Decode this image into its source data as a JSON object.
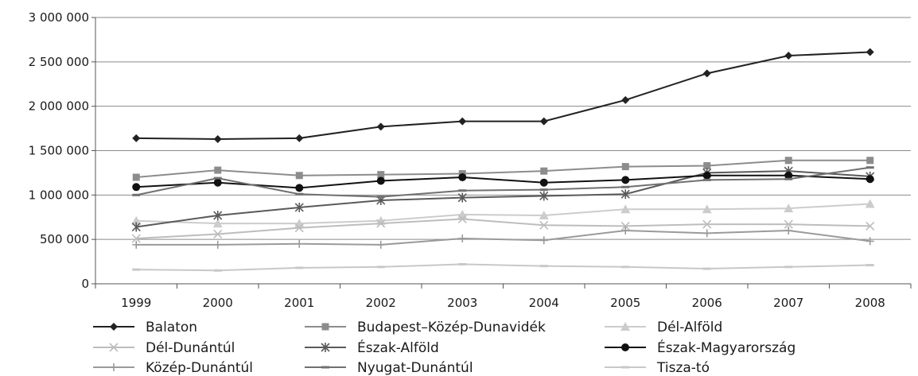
{
  "chart_data": {
    "type": "line",
    "categories": [
      "1999",
      "2000",
      "2001",
      "2002",
      "2003",
      "2004",
      "2005",
      "2006",
      "2007",
      "2008"
    ],
    "ylim": [
      0,
      3000000
    ],
    "yticks": [
      0,
      500000,
      1000000,
      1500000,
      2000000,
      2500000,
      3000000
    ],
    "ytick_labels": [
      "0",
      "500 000",
      "1 000 000",
      "1 500 000",
      "2 000 000",
      "2 500 000",
      "3 000 000"
    ],
    "grid": "horizontal",
    "legend_position": "bottom",
    "series": [
      {
        "name": "Balaton",
        "marker": "diamond",
        "color": "#222222",
        "values": [
          1640000,
          1630000,
          1640000,
          1770000,
          1830000,
          1830000,
          2070000,
          2370000,
          2570000,
          2610000
        ]
      },
      {
        "name": "Budapest–Közép-Dunavidék",
        "marker": "square",
        "color": "#8c8c8c",
        "values": [
          1200000,
          1280000,
          1220000,
          1230000,
          1240000,
          1270000,
          1320000,
          1330000,
          1390000,
          1390000
        ]
      },
      {
        "name": "Dél-Alföld",
        "marker": "triangle",
        "color": "#cccccc",
        "values": [
          710000,
          680000,
          680000,
          710000,
          780000,
          770000,
          840000,
          840000,
          850000,
          900000
        ]
      },
      {
        "name": "Dél-Dunántúl",
        "marker": "x",
        "color": "#bdbdbd",
        "values": [
          510000,
          560000,
          630000,
          680000,
          730000,
          660000,
          650000,
          670000,
          670000,
          650000
        ]
      },
      {
        "name": "Észak-Alföld",
        "marker": "star",
        "color": "#5a5a5a",
        "values": [
          640000,
          770000,
          860000,
          940000,
          970000,
          990000,
          1010000,
          1250000,
          1270000,
          1210000
        ]
      },
      {
        "name": "Észak-Magyarország",
        "marker": "circle",
        "color": "#111111",
        "values": [
          1090000,
          1140000,
          1080000,
          1160000,
          1200000,
          1140000,
          1170000,
          1220000,
          1220000,
          1180000
        ]
      },
      {
        "name": "Közép-Dunántúl",
        "marker": "plus",
        "color": "#9a9a9a",
        "values": [
          440000,
          440000,
          450000,
          440000,
          510000,
          490000,
          600000,
          570000,
          600000,
          480000
        ]
      },
      {
        "name": "Nyugat-Dunántúl",
        "marker": "dash",
        "color": "#707070",
        "values": [
          1000000,
          1190000,
          1010000,
          980000,
          1050000,
          1060000,
          1090000,
          1170000,
          1180000,
          1310000
        ]
      },
      {
        "name": "Tisza-tó",
        "marker": "dash",
        "color": "#c8c8c8",
        "values": [
          160000,
          150000,
          180000,
          190000,
          220000,
          200000,
          190000,
          170000,
          190000,
          210000
        ]
      }
    ]
  }
}
